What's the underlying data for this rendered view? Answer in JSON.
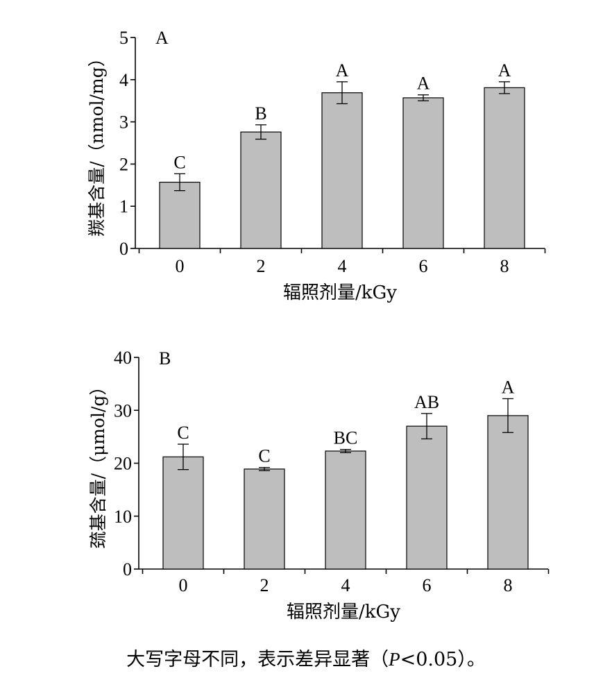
{
  "chart_data": [
    {
      "type": "bar",
      "panel_label": "A",
      "categories": [
        "0",
        "2",
        "4",
        "6",
        "8"
      ],
      "values": [
        1.57,
        2.76,
        3.69,
        3.57,
        3.81
      ],
      "errors": [
        0.2,
        0.17,
        0.26,
        0.07,
        0.14
      ],
      "significance": [
        "C",
        "B",
        "A",
        "A",
        "A"
      ],
      "xlabel": "辐照剂量/kGy",
      "ylabel": "羰基含量/（nmol/mg）",
      "ylim": [
        0,
        5
      ],
      "yticks": [
        0,
        1,
        2,
        3,
        4,
        5
      ],
      "bar_color": "#bebebe",
      "grid": false
    },
    {
      "type": "bar",
      "panel_label": "B",
      "categories": [
        "0",
        "2",
        "4",
        "6",
        "8"
      ],
      "values": [
        21.2,
        18.9,
        22.3,
        27.0,
        29.0
      ],
      "errors": [
        2.4,
        0.3,
        0.3,
        2.4,
        3.2
      ],
      "significance": [
        "C",
        "C",
        "BC",
        "AB",
        "A"
      ],
      "xlabel": "辐照剂量/kGy",
      "ylabel": "巯基含量/（μmol/g）",
      "ylim": [
        0,
        40
      ],
      "yticks": [
        0,
        10,
        20,
        30,
        40
      ],
      "bar_color": "#bebebe",
      "grid": false
    }
  ],
  "caption": {
    "prefix": "大写字母不同，表示差异显著（",
    "p_symbol": "P",
    "suffix": "<0.05）。"
  }
}
